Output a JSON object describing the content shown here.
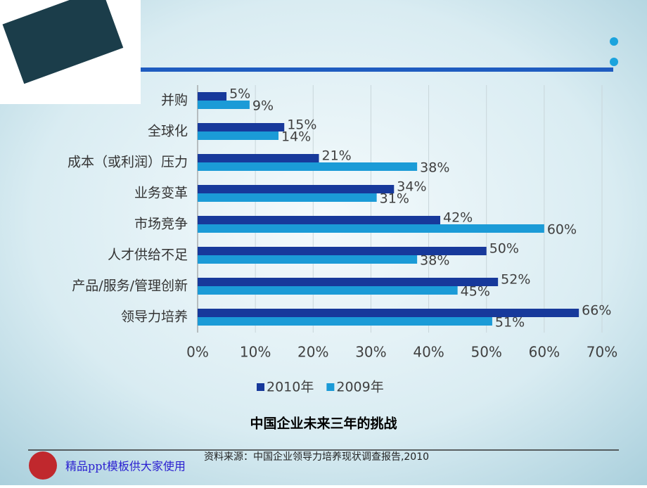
{
  "chart_data": {
    "type": "bar",
    "orientation": "horizontal",
    "title": "中国企业未来三年的挑战",
    "source": "资料来源：中国企业领导力培养现状调查报告,2010",
    "footer": "精品ppt模板供大家使用",
    "categories": [
      "并购",
      "全球化",
      "成本（或利润）压力",
      "业务变革",
      "市场竞争",
      "人才供给不足",
      "产品/服务/管理创新",
      "领导力培养"
    ],
    "series": [
      {
        "name": "2010年",
        "color": "#17399b",
        "values": [
          5,
          15,
          21,
          34,
          42,
          50,
          52,
          66
        ],
        "value_labels": [
          "5%",
          "15%",
          "21%",
          "34%",
          "42%",
          "50%",
          "52%",
          "66%"
        ]
      },
      {
        "name": "2009年",
        "color": "#1b9bd7",
        "values": [
          9,
          14,
          38,
          31,
          60,
          38,
          45,
          51
        ],
        "value_labels": [
          "9%",
          "14%",
          "38%",
          "31%",
          "60%",
          "38%",
          "45%",
          "51%"
        ]
      }
    ],
    "xlim": [
      0,
      70
    ],
    "xticks": [
      {
        "value": 0,
        "label": "0%"
      },
      {
        "value": 10,
        "label": "10%"
      },
      {
        "value": 20,
        "label": "20%"
      },
      {
        "value": 30,
        "label": "30%"
      },
      {
        "value": 40,
        "label": "40%"
      },
      {
        "value": 50,
        "label": "50%"
      },
      {
        "value": 60,
        "label": "60%"
      },
      {
        "value": 70,
        "label": "70%"
      }
    ],
    "grid": true,
    "legend": "bottom"
  }
}
